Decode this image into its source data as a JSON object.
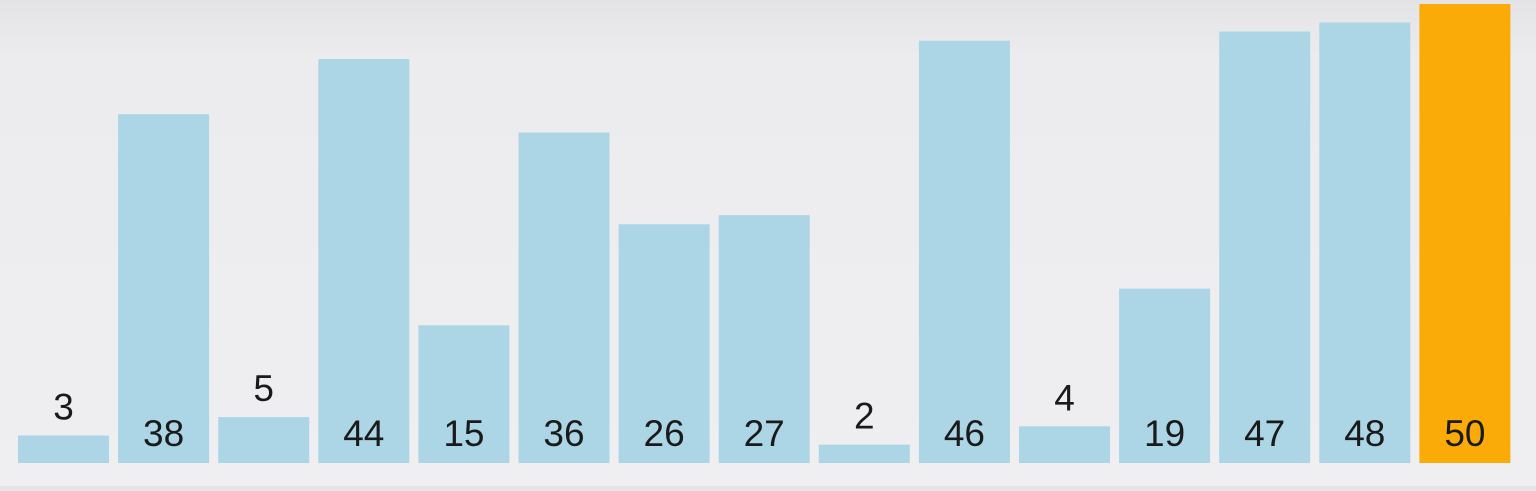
{
  "chart_data": {
    "type": "bar",
    "values": [
      3,
      38,
      5,
      44,
      15,
      36,
      26,
      27,
      2,
      46,
      4,
      19,
      47,
      48,
      50
    ],
    "labels": [
      "3",
      "38",
      "5",
      "44",
      "15",
      "36",
      "26",
      "27",
      "2",
      "46",
      "4",
      "19",
      "47",
      "48",
      "50"
    ],
    "highlighted_index": 14,
    "ylim": [
      0,
      50
    ],
    "grid": false,
    "colors": {
      "bar": "#acd5e6",
      "highlight": "#faab07",
      "label": "#1a1a1a"
    }
  }
}
